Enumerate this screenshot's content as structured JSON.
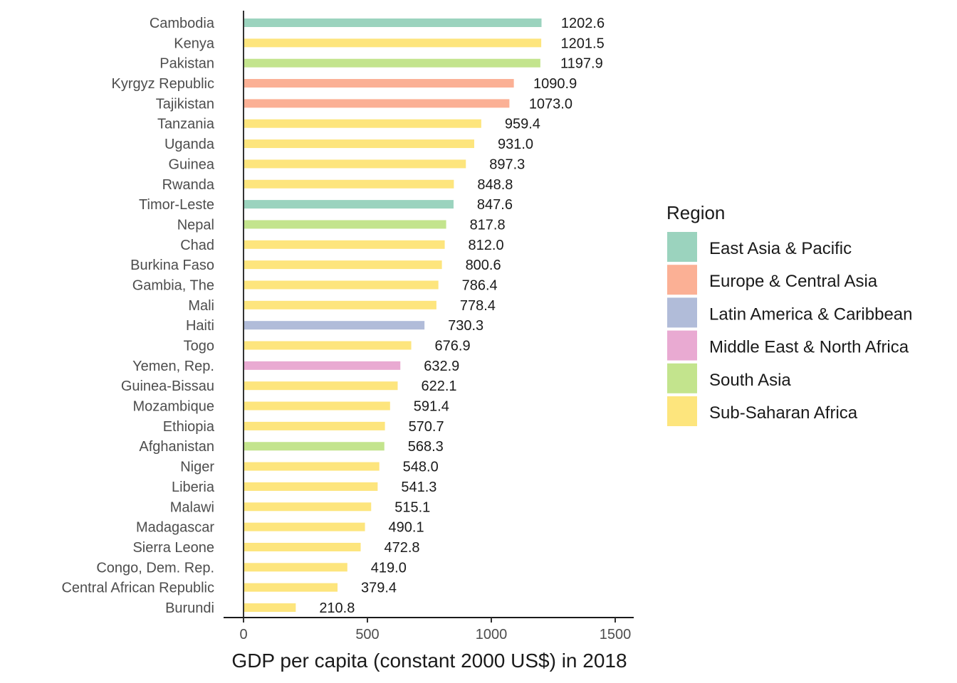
{
  "chart_data": {
    "type": "bar",
    "orientation": "horizontal",
    "xlabel": "GDP per capita (constant 2000 US$) in 2018",
    "ylabel": "",
    "xlim": [
      0,
      1500
    ],
    "x_ticks": [
      0,
      500,
      1000,
      1500
    ],
    "grid": false,
    "legend": {
      "title": "Region",
      "placement": "right",
      "items": [
        {
          "name": "East Asia & Pacific",
          "color": "#9bd3be"
        },
        {
          "name": "Europe & Central Asia",
          "color": "#fbb095"
        },
        {
          "name": "Latin America & Caribbean",
          "color": "#b1bcd9"
        },
        {
          "name": "Middle East & North Africa",
          "color": "#e9aad2"
        },
        {
          "name": "South Asia",
          "color": "#c3e48d"
        },
        {
          "name": "Sub-Saharan Africa",
          "color": "#fde57d"
        }
      ]
    },
    "bars": [
      {
        "country": "Cambodia",
        "value": 1202.6,
        "value_label": "1202.6",
        "region": "East Asia & Pacific"
      },
      {
        "country": "Kenya",
        "value": 1201.5,
        "value_label": "1201.5",
        "region": "Sub-Saharan Africa"
      },
      {
        "country": "Pakistan",
        "value": 1197.9,
        "value_label": "1197.9",
        "region": "South Asia"
      },
      {
        "country": "Kyrgyz Republic",
        "value": 1090.9,
        "value_label": "1090.9",
        "region": "Europe & Central Asia"
      },
      {
        "country": "Tajikistan",
        "value": 1073.0,
        "value_label": "1073.0",
        "region": "Europe & Central Asia"
      },
      {
        "country": "Tanzania",
        "value": 959.4,
        "value_label": "959.4",
        "region": "Sub-Saharan Africa"
      },
      {
        "country": "Uganda",
        "value": 931.0,
        "value_label": "931.0",
        "region": "Sub-Saharan Africa"
      },
      {
        "country": "Guinea",
        "value": 897.3,
        "value_label": "897.3",
        "region": "Sub-Saharan Africa"
      },
      {
        "country": "Rwanda",
        "value": 848.8,
        "value_label": "848.8",
        "region": "Sub-Saharan Africa"
      },
      {
        "country": "Timor-Leste",
        "value": 847.6,
        "value_label": "847.6",
        "region": "East Asia & Pacific"
      },
      {
        "country": "Nepal",
        "value": 817.8,
        "value_label": "817.8",
        "region": "South Asia"
      },
      {
        "country": "Chad",
        "value": 812.0,
        "value_label": "812.0",
        "region": "Sub-Saharan Africa"
      },
      {
        "country": "Burkina Faso",
        "value": 800.6,
        "value_label": "800.6",
        "region": "Sub-Saharan Africa"
      },
      {
        "country": "Gambia, The",
        "value": 786.4,
        "value_label": "786.4",
        "region": "Sub-Saharan Africa"
      },
      {
        "country": "Mali",
        "value": 778.4,
        "value_label": "778.4",
        "region": "Sub-Saharan Africa"
      },
      {
        "country": "Haiti",
        "value": 730.3,
        "value_label": "730.3",
        "region": "Latin America & Caribbean"
      },
      {
        "country": "Togo",
        "value": 676.9,
        "value_label": "676.9",
        "region": "Sub-Saharan Africa"
      },
      {
        "country": "Yemen, Rep.",
        "value": 632.9,
        "value_label": "632.9",
        "region": "Middle East & North Africa"
      },
      {
        "country": "Guinea-Bissau",
        "value": 622.1,
        "value_label": "622.1",
        "region": "Sub-Saharan Africa"
      },
      {
        "country": "Mozambique",
        "value": 591.4,
        "value_label": "591.4",
        "region": "Sub-Saharan Africa"
      },
      {
        "country": "Ethiopia",
        "value": 570.7,
        "value_label": "570.7",
        "region": "Sub-Saharan Africa"
      },
      {
        "country": "Afghanistan",
        "value": 568.3,
        "value_label": "568.3",
        "region": "South Asia"
      },
      {
        "country": "Niger",
        "value": 548.0,
        "value_label": "548.0",
        "region": "Sub-Saharan Africa"
      },
      {
        "country": "Liberia",
        "value": 541.3,
        "value_label": "541.3",
        "region": "Sub-Saharan Africa"
      },
      {
        "country": "Malawi",
        "value": 515.1,
        "value_label": "515.1",
        "region": "Sub-Saharan Africa"
      },
      {
        "country": "Madagascar",
        "value": 490.1,
        "value_label": "490.1",
        "region": "Sub-Saharan Africa"
      },
      {
        "country": "Sierra Leone",
        "value": 472.8,
        "value_label": "472.8",
        "region": "Sub-Saharan Africa"
      },
      {
        "country": "Congo, Dem. Rep.",
        "value": 419.0,
        "value_label": "419.0",
        "region": "Sub-Saharan Africa"
      },
      {
        "country": "Central African Republic",
        "value": 379.4,
        "value_label": "379.4",
        "region": "Sub-Saharan Africa"
      },
      {
        "country": "Burundi",
        "value": 210.8,
        "value_label": "210.8",
        "region": "Sub-Saharan Africa"
      }
    ]
  }
}
